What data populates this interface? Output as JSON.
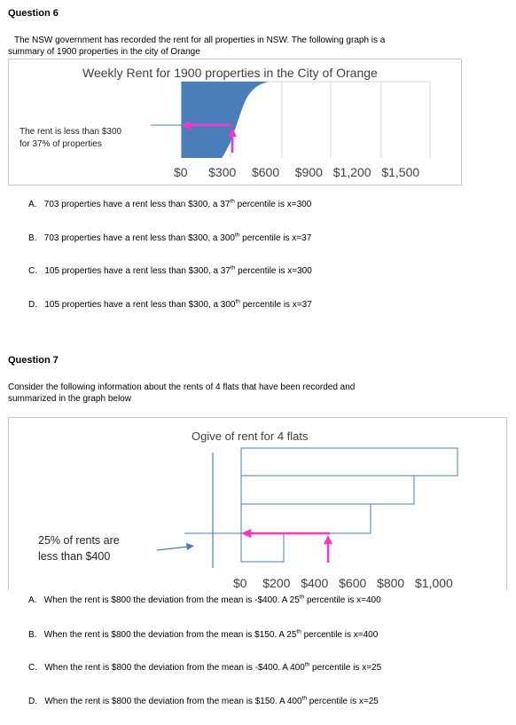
{
  "q6": {
    "title": "Question 6",
    "intro_line1": "The NSW government has recorded the rent for all properties in NSW. The following graph is a",
    "intro_line2": "summary of 1900 properties in the city of Orange",
    "chart_title": "Weekly Rent for 1900 properties in the City of Orange",
    "annotation_line1": "The rent is less than $300",
    "annotation_line2": "for 37% of properties",
    "ticks": [
      "$0",
      "$300",
      "$600",
      "$900",
      "$1,200",
      "$1,500"
    ],
    "options": [
      {
        "letter": "A.",
        "pre": "703 properties have a rent less than $300, a 37",
        "sup": "th",
        "post": " percentile is x=300"
      },
      {
        "letter": "B.",
        "pre": "703 properties have a rent less than $300, a 300",
        "sup": "th",
        "post": " percentile is x=37"
      },
      {
        "letter": "C.",
        "pre": "105 properties have a rent less than $300, a 37",
        "sup": "th",
        "post": " percentile is x=300"
      },
      {
        "letter": "D.",
        "pre": "105 properties have a rent less than $300, a 300",
        "sup": "th",
        "post": " percentile is x=37"
      }
    ]
  },
  "q7": {
    "title": "Question 7",
    "intro_line1": "Consider the following information about the rents of 4 flats that have been recorded and",
    "intro_line2": "summarized in the graph below",
    "chart_title": "Ogive of rent for 4 flats",
    "annotation_line1": "25% of rents are",
    "annotation_line2": "less than $400",
    "ticks": [
      "$0",
      "$200",
      "$400",
      "$600",
      "$800",
      "$1,000"
    ],
    "options": [
      {
        "letter": "A.",
        "pre": "When the rent is $800 the deviation  from the mean is -$400. A 25",
        "sup": "th",
        "post": " percentile is x=400"
      },
      {
        "letter": "B.",
        "pre": "When the rent is $800 the deviation  from the mean is $150.  A 25",
        "sup": "th",
        "post": " percentile is x=400"
      },
      {
        "letter": "C.",
        "pre": "When the rent is $800 the deviation  from the mean is -$400.  A 400",
        "sup": "th",
        "post": " percentile is x=25"
      },
      {
        "letter": "D.",
        "pre": "When the rent is $800 the deviation  from the mean is $150.   A 400",
        "sup": "th",
        "post": " percentile is x=25"
      }
    ]
  },
  "colors": {
    "fill": "#4a7ebb",
    "arrow": "#ff33cc",
    "axis": "#4a7ebb",
    "gray": "#c8c8c8"
  }
}
